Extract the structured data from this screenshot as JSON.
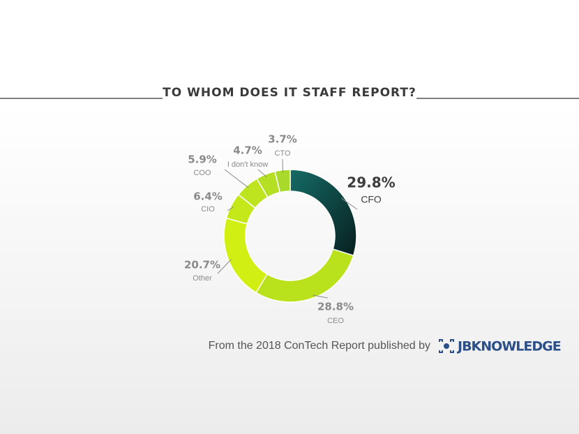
{
  "chart_data": {
    "type": "pie",
    "title": "TO WHOM DOES IT STAFF REPORT?",
    "categories": [
      "CFO",
      "CEO",
      "Other",
      "CIO",
      "COO",
      "I don't know",
      "CTO"
    ],
    "values": [
      29.8,
      28.8,
      20.7,
      6.4,
      5.9,
      4.7,
      3.7
    ],
    "value_labels": [
      "29.8%",
      "28.8%",
      "20.7%",
      "6.4%",
      "5.9%",
      "4.7%",
      "3.7%"
    ],
    "colors": [
      "#0f4a47",
      "#b9e21c",
      "#d2ef14",
      "#c4e81a",
      "#bde41e",
      "#b4df22",
      "#a9d92a"
    ],
    "source": "From the 2018 ConTech Report published by",
    "logo": "JBKNOWLEDGE"
  }
}
